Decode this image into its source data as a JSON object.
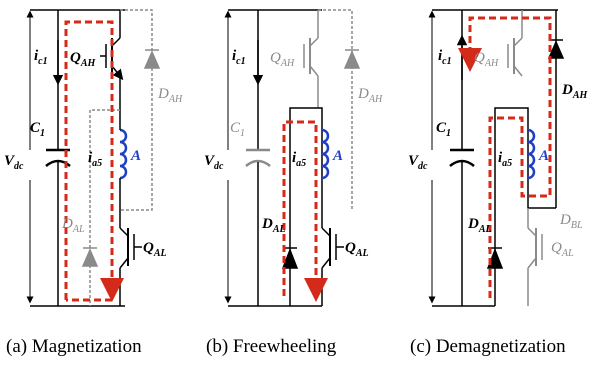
{
  "panels": [
    {
      "caption": "(a) Magnetization",
      "labels": {
        "ic1": {
          "main": "i",
          "sub": "c1"
        },
        "c1": {
          "main": "C",
          "sub": "1"
        },
        "vdc": {
          "main": "V",
          "sub": "dc"
        },
        "ia5": {
          "main": "i",
          "sub": "a5"
        },
        "a": "A",
        "qah": {
          "main": "Q",
          "sub": "AH"
        },
        "dah": {
          "main": "D",
          "sub": "AH"
        },
        "dal": {
          "main": "D",
          "sub": "AL"
        },
        "qal": {
          "main": "Q",
          "sub": "AL"
        }
      }
    },
    {
      "caption": "(b) Freewheeling",
      "labels": {
        "ic1": {
          "main": "i",
          "sub": "c1"
        },
        "c1": {
          "main": "C",
          "sub": "1"
        },
        "vdc": {
          "main": "V",
          "sub": "dc"
        },
        "ia5": {
          "main": "i",
          "sub": "a5"
        },
        "a": "A",
        "qah": {
          "main": "Q",
          "sub": "AH"
        },
        "dah": {
          "main": "D",
          "sub": "AH"
        },
        "dal": {
          "main": "D",
          "sub": "AL"
        },
        "qal": {
          "main": "Q",
          "sub": "AL"
        }
      }
    },
    {
      "caption": "(c) Demagnetization",
      "labels": {
        "ic1": {
          "main": "i",
          "sub": "c1"
        },
        "c1": {
          "main": "C",
          "sub": "1"
        },
        "vdc": {
          "main": "V",
          "sub": "dc"
        },
        "ia5": {
          "main": "i",
          "sub": "a5"
        },
        "a": "A",
        "qah": {
          "main": "Q",
          "sub": "AH"
        },
        "dah": {
          "main": "D",
          "sub": "AH"
        },
        "dal": {
          "main": "D",
          "sub": "AL"
        },
        "dbl": {
          "main": "D",
          "sub": "BL"
        },
        "qal": {
          "main": "Q",
          "sub": "AL"
        }
      }
    }
  ],
  "colors": {
    "wire": "#000000",
    "inactive": "#8a8a8a",
    "current_path": "#d42a1a",
    "inductor": "#1f3fc4"
  }
}
